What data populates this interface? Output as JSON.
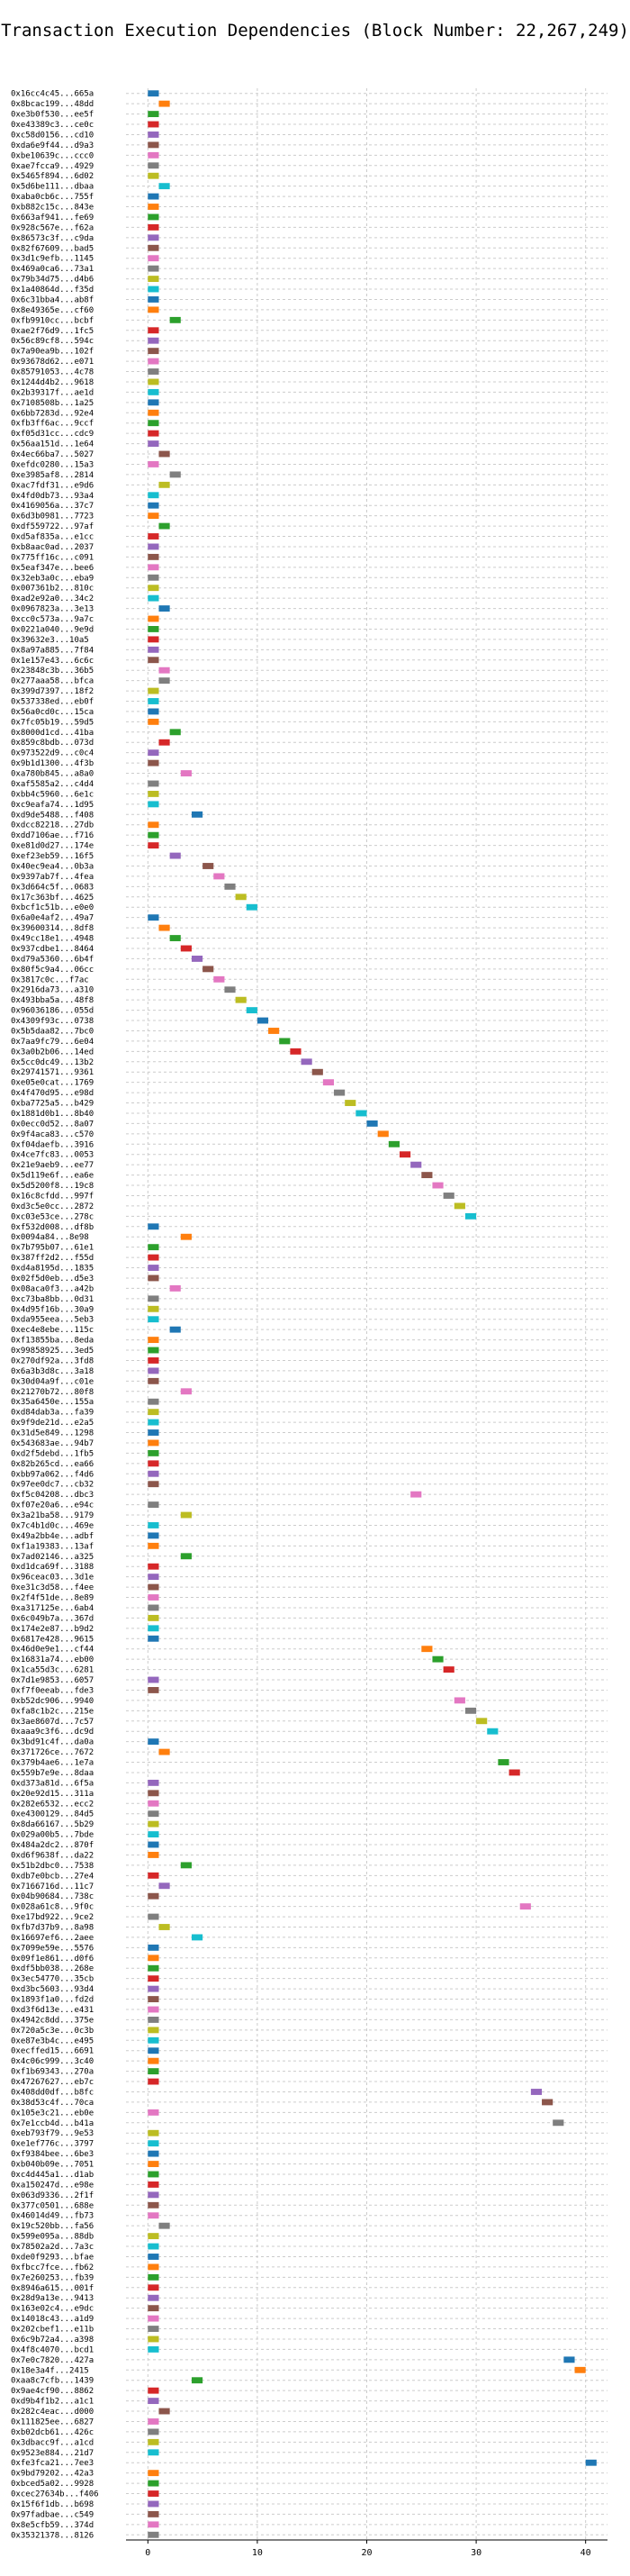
{
  "chart_data": {
    "type": "bar",
    "orientation": "horizontal",
    "title": "Transaction Execution Dependencies (Block Number: 22,267,249)",
    "xlabel": "",
    "ylabel": "",
    "xlim": [
      -2,
      42
    ],
    "xticks": [
      0,
      10,
      20,
      30,
      40
    ],
    "grid": true,
    "bar_width": 1,
    "palette": [
      "#1f77b4",
      "#ff7f0e",
      "#2ca02c",
      "#d62728",
      "#9467bd",
      "#8c564b",
      "#e377c2",
      "#7f7f7f",
      "#bcbd22",
      "#17becf"
    ],
    "categories": [
      "0x16cc4c45...665a",
      "0x8bcac199...48dd",
      "0xe3b0f530...ee5f",
      "0xe43389c3...ce0c",
      "0xc58d0156...cd10",
      "0xda6e9f44...d9a3",
      "0xbe10639c...ccc0",
      "0xae7fcca9...4929",
      "0x5465f894...6d02",
      "0x5d6be111...dbaa",
      "0xaba0cb6c...755f",
      "0xb882c15c...843e",
      "0x663af941...fe69",
      "0x928c567e...f62a",
      "0x86573c3f...c9da",
      "0x82f67609...bad5",
      "0x3d1c9efb...1145",
      "0x469a0ca6...73a1",
      "0x79b34d75...d4b6",
      "0x1a40864d...f35d",
      "0x6c31bba4...ab8f",
      "0x8e49365e...cf60",
      "0xfb9910cc...bcbf",
      "0xae2f76d9...1fc5",
      "0x56c89cf8...594c",
      "0x7a90ea9b...102f",
      "0x93678d62...e071",
      "0x85791053...4c78",
      "0x1244d4b2...9618",
      "0x2b39317f...ae1d",
      "0x7108508b...1a25",
      "0x6bb7283d...92e4",
      "0xfb3ff6ac...9ccf",
      "0xf05d31cc...cdc9",
      "0x56aa151d...1e64",
      "0x4ec66ba7...5027",
      "0xefdc0280...15a3",
      "0xe3985af8...2814",
      "0xac7fdf31...e9d6",
      "0x4fd0db73...93a4",
      "0x4169056a...37c7",
      "0x6d3b0981...7723",
      "0xdf559722...97af",
      "0xd5af835a...e1cc",
      "0xb8aac0ad...2037",
      "0x775ff16c...c091",
      "0x5eaf347e...bee6",
      "0x32eb3a0c...eba9",
      "0x007361b2...810c",
      "0xad2e92a0...34c2",
      "0x0967823a...3e13",
      "0xcc0c573a...9a7c",
      "0x0221a040...9e9d",
      "0x39632e3...10a5",
      "0x8a97a885...7f84",
      "0x1e157e43...6c6c",
      "0x23848c3b...36b5",
      "0x277aaa58...bfca",
      "0x399d7397...18f2",
      "0x537338ed...eb0f",
      "0x56a0cd0c...15ca",
      "0x7fc05b19...59d5",
      "0x8000d1cd...41ba",
      "0x859c8bdb...073d",
      "0x973522d9...c0c4",
      "0x9b1d1300...4f3b",
      "0xa780b845...a8a0",
      "0xaf5585a2...c4d4",
      "0xbb4c5960...6e1c",
      "0xc9eafa74...1d95",
      "0xd9de5488...f408",
      "0xdcc82218...27db",
      "0xdd7106ae...f716",
      "0xe81d0d27...174e",
      "0xef23eb59...16f5",
      "0x40ec9ea4...0b3a",
      "0x9397ab7f...4fea",
      "0x3d664c5f...0683",
      "0x17c363bf...4625",
      "0xbcf1c51b...e0e0",
      "0x6a0e4af2...49a7",
      "0x39600314...8df8",
      "0x49cc18e1...4948",
      "0x937cdbe1...8464",
      "0xd79a5360...6b4f",
      "0x80f5c9a4...06cc",
      "0x3817c0c...f7ac",
      "0x2916da73...a310",
      "0x493bba5a...48f8",
      "0x96036186...055d",
      "0x4309f93c...0738",
      "0x5b5daa82...7bc0",
      "0x7aa9fc79...6e04",
      "0x3a0b2b06...14ed",
      "0x5cc0dc49...13b2",
      "0x29741571...9361",
      "0xe05e0cat...1769",
      "0x4f470d95...e98d",
      "0xba7725a5...b429",
      "0x1881d0b1...8b40",
      "0x0ecc0d52...8a07",
      "0x9f4aca83...c570",
      "0xf04daefb...3916",
      "0x4ce7fc83...0053",
      "0x21e9aeb9...ee77",
      "0x5d119e6f...ea6e",
      "0x5d5200f8...19c8",
      "0x16c8cfdd...997f",
      "0xd3c5e0cc...2872",
      "0xc03e53ce...278c",
      "0xf532d008...df8b",
      "0x0094a84...8e98",
      "0x7b795b07...61e1",
      "0x387ff2d2...f55d",
      "0xd4a8195d...1835",
      "0x02f5d0eb...d5e3",
      "0x08aca0f3...a42b",
      "0xc73ba8bb...0d31",
      "0x4d95f16b...30a9",
      "0xda955eea...5eb3",
      "0xec4e8ebe...115c",
      "0xf13855ba...8eda",
      "0x99858925...3ed5",
      "0x270df92a...3fd8",
      "0x6a3b3d8c...3a18",
      "0x30d04a9f...c01e",
      "0x21270b72...80f8",
      "0x35a6450e...155a",
      "0xd84dab3a...fa39",
      "0x9f9de21d...e2a5",
      "0x31d5e849...1298",
      "0x543683ae...94b7",
      "0xd2f5debd...1fb5",
      "0x82b265cd...ea66",
      "0xbb97a062...f4d6",
      "0x97ee0dc7...cb32",
      "0xf5c04208...dbc3",
      "0xf07e20a6...e94c",
      "0x3a21ba58...9179",
      "0x7c4b1d0c...469e",
      "0x49a2bb4e...adbf",
      "0xf1a19383...13af",
      "0x7ad02146...a325",
      "0xd1dca69f...3188",
      "0x96ceac03...3d1e",
      "0xe31c3d58...f4ee",
      "0x2f4f51de...8e89",
      "0xa317125e...6ab4",
      "0x6c049b7a...367d",
      "0x174e2e87...b9d2",
      "0x6817e428...9615",
      "0x46d0e9e1...cf44",
      "0x16831a74...eb00",
      "0x1ca55d3c...6281",
      "0x7d1e9853...6057",
      "0xf7f0eeab...fde3",
      "0xb52dc906...9940",
      "0xfa8c1b2c...215e",
      "0x3ae8607d...7c57",
      "0xaaa9c3f6...dc9d",
      "0x3bd91c4f...da0a",
      "0x371726ce...7672",
      "0x379b4ae6...1e7a",
      "0x559b7e9e...8daa",
      "0xd373a81d...6f5a",
      "0x20e92d15...311a",
      "0x282e6532...ecc2",
      "0xe4300129...84d5",
      "0x8da66167...5b29",
      "0x029a00b5...7bde",
      "0x484a2dc2...870f",
      "0xd6f9638f...da22",
      "0x51b2dbc0...7538",
      "0xdb7e0bcb...27e4",
      "0x7166716d...11c7",
      "0x04b90684...738c",
      "0x028a61c8...9f0c",
      "0xe17bd922...9ce2",
      "0xfb7d37b9...8a98",
      "0x16697ef6...2aee",
      "0x7099e59e...5576",
      "0x09f1e861...d0f6",
      "0xdf5bb038...268e",
      "0x3ec54770...35cb",
      "0xd3bc5603...93d4",
      "0x1893f1a0...fd2d",
      "0xd3f6d13e...e431",
      "0x4942c8dd...375e",
      "0x720a5c3e...0c3b",
      "0xe87e3b4c...e495",
      "0xecffed15...6691",
      "0x4c06c999...3c40",
      "0xf1b69343...270a",
      "0x47267627...eb7c",
      "0x408dd0df...b8fc",
      "0x38d53c4f...70ca",
      "0x105e3c21...eb0e",
      "0x7e1ccb4d...b41a",
      "0xeb793f79...9e53",
      "0xe1ef776c...3797",
      "0xf9384bee...6be3",
      "0xb040b09e...7051",
      "0xc4d445a1...d1ab",
      "0xa150247d...e98e",
      "0x063d9336...2f1f",
      "0x377c0501...688e",
      "0x46014d49...fb73",
      "0x19c520bb...fa56",
      "0x599e095a...88db",
      "0x78502a2d...7a3c",
      "0xde0f9293...bfae",
      "0xfbcc7fce...fb62",
      "0x7e260253...fb39",
      "0x8946a615...001f",
      "0x28d9a13e...9413",
      "0x163e02c4...e9dc",
      "0x14018c43...a1d9",
      "0x202cbef1...e11b",
      "0x6c9b72a4...a398",
      "0x4f8c4070...bcd1",
      "0x7e0c7820...427a",
      "0x18e3a4f...2415",
      "0xaa8c7cfb...1439",
      "0x9ae4cf90...8862",
      "0xd9b4f1b2...a1c1",
      "0x282c4eac...d000",
      "0x111825ee...6827",
      "0xb02dcb61...426c",
      "0x3dbacc9f...a1cd",
      "0x9523e884...21d7",
      "0xfe3fca21...7ee3",
      "0x9bd79202...42a3",
      "0xbced5a02...9928",
      "0xcec27634b...f406",
      "0x15f6f1db...b698",
      "0x97fadbae...c549",
      "0x8e5cfb59...374d",
      "0x35321378...8126"
    ],
    "values": [
      0,
      1,
      0,
      0,
      0,
      0,
      0,
      0,
      0,
      1,
      0,
      0,
      0,
      0,
      0,
      0,
      0,
      0,
      0,
      0,
      0,
      0,
      2,
      0,
      0,
      0,
      0,
      0,
      0,
      0,
      0,
      0,
      0,
      0,
      0,
      1,
      0,
      2,
      1,
      0,
      0,
      0,
      1,
      0,
      0,
      0,
      0,
      0,
      0,
      0,
      1,
      0,
      0,
      0,
      0,
      0,
      1,
      1,
      0,
      0,
      0,
      0,
      2,
      1,
      0,
      0,
      3,
      0,
      0,
      0,
      4,
      0,
      0,
      0,
      2,
      5,
      6,
      7,
      8,
      9,
      0,
      1,
      2,
      3,
      4,
      5,
      6,
      7,
      8,
      9,
      10,
      11,
      12,
      13,
      14,
      15,
      16,
      17,
      18,
      19,
      20,
      21,
      22,
      23,
      24,
      25,
      26,
      27,
      28,
      29,
      0,
      3,
      0,
      0,
      0,
      0,
      2,
      0,
      0,
      0,
      2,
      0,
      0,
      0,
      0,
      0,
      3,
      0,
      0,
      0,
      0,
      0,
      0,
      0,
      0,
      0,
      24,
      0,
      3,
      0,
      0,
      0,
      3,
      0,
      0,
      0,
      0,
      0,
      0,
      0,
      0,
      25,
      26,
      27,
      0,
      0,
      28,
      29,
      30,
      31,
      0,
      1,
      32,
      33,
      0,
      0,
      0,
      0,
      0,
      0,
      0,
      0,
      3,
      0,
      1,
      0,
      34,
      0,
      1,
      4,
      0,
      0,
      0,
      0,
      0,
      0,
      0,
      0,
      0,
      0,
      0,
      0,
      0,
      0,
      35,
      36,
      0,
      37,
      0,
      0,
      0,
      0,
      0,
      0,
      0,
      0,
      0,
      1,
      0,
      0,
      0,
      0,
      0,
      0,
      0,
      0,
      0,
      0,
      0,
      0,
      38,
      39,
      4,
      0,
      0,
      1,
      0,
      0,
      0,
      0,
      40,
      0,
      0,
      0,
      0,
      0,
      0,
      0
    ],
    "colors": [
      0,
      1,
      2,
      3,
      4,
      5,
      6,
      7,
      8,
      9,
      0,
      1,
      2,
      3,
      4,
      5,
      6,
      7,
      8,
      9,
      0,
      1,
      2,
      3,
      4,
      5,
      6,
      7,
      8,
      9,
      0,
      1,
      2,
      3,
      4,
      5,
      6,
      7,
      8,
      9,
      0,
      1,
      2,
      3,
      4,
      5,
      6,
      7,
      8,
      9,
      0,
      1,
      2,
      3,
      4,
      5,
      6,
      7,
      8,
      9,
      0,
      1,
      2,
      3,
      4,
      5,
      6,
      7,
      8,
      9,
      0,
      1,
      2,
      3,
      4,
      5,
      6,
      7,
      8,
      9,
      0,
      1,
      2,
      3,
      4,
      5,
      6,
      7,
      8,
      9,
      0,
      1,
      2,
      3,
      4,
      5,
      6,
      7,
      8,
      9,
      0,
      1,
      2,
      3,
      4,
      5,
      6,
      7,
      8,
      9,
      0,
      1,
      2,
      3,
      4,
      5,
      6,
      7,
      8,
      9,
      0,
      1,
      2,
      3,
      4,
      5,
      6,
      7,
      8,
      9,
      0,
      1,
      2,
      3,
      4,
      5,
      6,
      7,
      8,
      9,
      0,
      1,
      2,
      3,
      4,
      5,
      6,
      7,
      8,
      9,
      0,
      1,
      2,
      3,
      4,
      5,
      6,
      7,
      8,
      9,
      0,
      1,
      2,
      3,
      4,
      5,
      6,
      7,
      8,
      9,
      0,
      1,
      2,
      3,
      4,
      5,
      6,
      7,
      8,
      9,
      0,
      1,
      2,
      3,
      4,
      5,
      6,
      7,
      8,
      9,
      0,
      1,
      2,
      3,
      4,
      5,
      6,
      7,
      8,
      9,
      0,
      1,
      2,
      3,
      4,
      5,
      6,
      7,
      8,
      9,
      0,
      1,
      2,
      3,
      4,
      5,
      6,
      7,
      8,
      9,
      0,
      1,
      2,
      3,
      4,
      5,
      6,
      7,
      8,
      9,
      0,
      1,
      2,
      3,
      4,
      5,
      6,
      7
    ]
  }
}
